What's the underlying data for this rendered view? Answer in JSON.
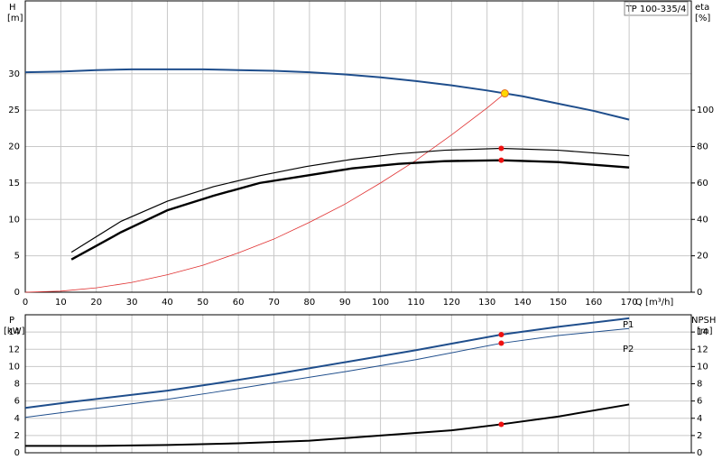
{
  "chart_data": [
    {
      "type": "line",
      "title": "TP 100-335/4",
      "ylabel": "H",
      "yunit": "[m]",
      "y2label": "eta",
      "y2unit": "[%]",
      "xlabel": "Q [m³/h]",
      "xlim": [
        0,
        187.5
      ],
      "xticks": [
        0,
        10,
        20,
        30,
        40,
        50,
        60,
        70,
        80,
        90,
        100,
        110,
        120,
        130,
        140,
        150,
        160,
        170
      ],
      "ylim": [
        0,
        40
      ],
      "yticks": [
        0,
        5,
        10,
        15,
        20,
        25,
        30
      ],
      "y2lim": [
        0,
        160
      ],
      "y2ticks": [
        0,
        20,
        40,
        60,
        80,
        100
      ],
      "grid": true,
      "series": [
        {
          "color": "#e03030",
          "width": 0.8,
          "x": [
            0,
            10,
            20,
            30,
            40,
            50,
            60,
            70,
            80,
            90,
            100,
            110,
            120,
            130,
            135
          ],
          "values": [
            0,
            0.15,
            0.6,
            1.35,
            2.4,
            3.7,
            5.4,
            7.3,
            9.6,
            12.1,
            15.0,
            18.1,
            21.6,
            25.3,
            27.3
          ]
        },
        {
          "color": "#1f4e8c",
          "width": 2,
          "x": [
            0,
            10,
            20,
            30,
            40,
            50,
            60,
            70,
            80,
            90,
            100,
            110,
            120,
            130,
            140,
            150,
            160,
            170
          ],
          "values": [
            30.2,
            30.3,
            30.5,
            30.6,
            30.6,
            30.6,
            30.5,
            30.4,
            30.2,
            29.9,
            29.5,
            29.0,
            28.4,
            27.7,
            26.9,
            25.9,
            24.9,
            23.7
          ]
        },
        {
          "color": "#000000",
          "width": 1.2,
          "axis": "y2",
          "x": [
            13,
            27,
            40,
            53,
            66,
            79,
            92,
            105,
            118,
            134,
            150,
            170
          ],
          "values": [
            22,
            39,
            50,
            58,
            64,
            69,
            73,
            76,
            78,
            79,
            78,
            75
          ]
        },
        {
          "color": "#000000",
          "width": 2.4,
          "axis": "y2",
          "x": [
            13,
            27,
            40,
            53,
            66,
            79,
            92,
            105,
            118,
            134,
            150,
            170
          ],
          "values": [
            18,
            33,
            45,
            53,
            60,
            64,
            68,
            70.5,
            72,
            72.5,
            71.5,
            68.5
          ]
        },
        {
          "marker": "dot",
          "color": "#ee1111",
          "axis": "y2",
          "x": [
            134,
            134
          ],
          "values": [
            79,
            72.5
          ]
        },
        {
          "marker": "duty",
          "color": "#ffd700",
          "x": [
            135
          ],
          "values": [
            27.3
          ]
        }
      ]
    },
    {
      "type": "line",
      "ylabel": "P",
      "yunit": "[kW]",
      "y2label": "NPSH",
      "y2unit": "[m]",
      "xlim": [
        0,
        187.5
      ],
      "ylim": [
        0,
        16
      ],
      "yticks": [
        0,
        2,
        4,
        6,
        8,
        10,
        12,
        14
      ],
      "y2lim": [
        0,
        16
      ],
      "y2ticks": [
        0,
        2,
        4,
        6,
        8,
        10,
        12,
        14
      ],
      "grid": true,
      "series": [
        {
          "name": "P1",
          "color": "#1f4e8c",
          "width": 2,
          "x": [
            0,
            13,
            40,
            53,
            70,
            90,
            110,
            134,
            150,
            170
          ],
          "values": [
            5.2,
            5.9,
            7.2,
            8.0,
            9.1,
            10.5,
            11.9,
            13.7,
            14.6,
            15.6
          ]
        },
        {
          "name": "P2",
          "color": "#1f4e8c",
          "width": 1,
          "x": [
            0,
            13,
            40,
            53,
            70,
            90,
            110,
            134,
            150,
            170
          ],
          "values": [
            4.1,
            4.8,
            6.2,
            7.0,
            8.1,
            9.4,
            10.8,
            12.7,
            13.6,
            14.4
          ]
        },
        {
          "color": "#000000",
          "width": 2,
          "axis": "y2",
          "x": [
            0,
            20,
            40,
            60,
            80,
            100,
            120,
            134,
            150,
            170
          ],
          "values": [
            0.8,
            0.8,
            0.9,
            1.1,
            1.4,
            2.0,
            2.6,
            3.3,
            4.2,
            5.6
          ]
        },
        {
          "marker": "dot",
          "color": "#ee1111",
          "x": [
            134,
            134
          ],
          "values": [
            13.7,
            12.7
          ]
        },
        {
          "marker": "dot",
          "color": "#ee1111",
          "axis": "y2",
          "x": [
            134
          ],
          "values": [
            3.3
          ]
        }
      ]
    }
  ]
}
